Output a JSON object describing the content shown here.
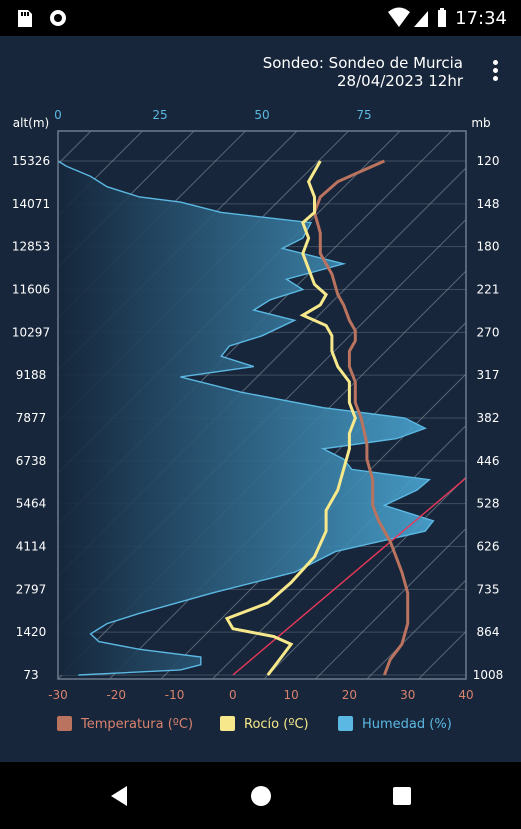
{
  "status_bar": {
    "time": "17:34",
    "left_icons": [
      "sd-card-icon",
      "record-icon"
    ],
    "right_icons": [
      "wifi-icon",
      "cell-signal-icon",
      "battery-icon"
    ]
  },
  "header": {
    "title_line1": "Sondeo: Sondeo de Murcia",
    "title_line2": "28/04/2023 12hr",
    "menu_icon": "more-vert-icon"
  },
  "chart_data": {
    "type": "line",
    "left_axis": {
      "label": "alt(m)",
      "ticks": [
        "15326",
        "14071",
        "12853",
        "11606",
        "10297",
        "9188",
        "7877",
        "6738",
        "5464",
        "4114",
        "2797",
        "1420",
        "73"
      ]
    },
    "right_axis": {
      "label": "mb",
      "ticks": [
        "120",
        "148",
        "180",
        "221",
        "270",
        "317",
        "382",
        "446",
        "528",
        "626",
        "735",
        "864",
        "1008"
      ]
    },
    "top_axis": {
      "ticks": [
        "0",
        "25",
        "50",
        "75"
      ],
      "range": [
        0,
        100
      ]
    },
    "bottom_axis": {
      "ticks": [
        "-30",
        "-20",
        "-10",
        "0",
        "10",
        "20",
        "30",
        "40"
      ],
      "range": [
        -30,
        40
      ]
    },
    "colors": {
      "temperature": "#b9735e",
      "dew_point": "#f7e98b",
      "humidity": "#5bb8e2",
      "axis_text_top": "#5bb8e2",
      "axis_text_bottom": "#d9826e",
      "reference_line": "#e8385a",
      "grid": "#8b97a8"
    },
    "series": [
      {
        "key": "temperature",
        "name": "Temperatura (ºC)",
        "units": "°C",
        "levels": [
          0,
          0.03,
          0.06,
          0.1,
          0.13,
          0.16,
          0.2,
          0.23,
          0.26,
          0.28,
          0.3,
          0.33,
          0.38,
          0.42,
          0.45,
          0.5,
          0.53,
          0.57,
          0.6,
          0.63,
          0.65,
          0.67,
          0.69,
          0.72,
          0.74,
          0.78,
          0.82,
          0.86,
          0.9,
          0.93,
          0.96,
          0.98,
          1
        ],
        "values": [
          26,
          27,
          29,
          30,
          30,
          30,
          29,
          28,
          27,
          26,
          25,
          24,
          24,
          23,
          23,
          22,
          21,
          21,
          20,
          20,
          21,
          21,
          20,
          19,
          18,
          17,
          15,
          15,
          14,
          15,
          18,
          22,
          26
        ]
      },
      {
        "key": "dew_point",
        "name": "Rocío (ºC)",
        "units": "°C",
        "levels": [
          0,
          0.015,
          0.03,
          0.06,
          0.075,
          0.09,
          0.11,
          0.14,
          0.18,
          0.23,
          0.28,
          0.32,
          0.36,
          0.4,
          0.44,
          0.47,
          0.5,
          0.53,
          0.57,
          0.6,
          0.63,
          0.66,
          0.68,
          0.7,
          0.72,
          0.74,
          0.76,
          0.79,
          0.82,
          0.85,
          0.88,
          0.9,
          0.93,
          0.96,
          0.98,
          1
        ],
        "values": [
          6,
          7,
          8,
          10,
          7,
          0,
          -1,
          6,
          10,
          14,
          16,
          16,
          18,
          19,
          20,
          20,
          21,
          20,
          20,
          18,
          17,
          17,
          16,
          12,
          15,
          16,
          14,
          13,
          12,
          13,
          12,
          14,
          14,
          13,
          14,
          15
        ]
      },
      {
        "key": "humidity",
        "name": "Humedad (%)",
        "units": "%",
        "levels": [
          0,
          0.01,
          0.02,
          0.035,
          0.05,
          0.065,
          0.08,
          0.1,
          0.12,
          0.16,
          0.2,
          0.24,
          0.28,
          0.3,
          0.33,
          0.36,
          0.38,
          0.4,
          0.42,
          0.44,
          0.46,
          0.48,
          0.5,
          0.52,
          0.55,
          0.58,
          0.6,
          0.62,
          0.64,
          0.66,
          0.69,
          0.71,
          0.73,
          0.75,
          0.77,
          0.8,
          0.81,
          0.83,
          0.85,
          0.88,
          0.9,
          0.92,
          0.93,
          0.95,
          0.97,
          0.99,
          1
        ],
        "values": [
          5,
          30,
          35,
          35,
          20,
          10,
          8,
          12,
          20,
          38,
          58,
          68,
          90,
          92,
          80,
          88,
          91,
          72,
          70,
          65,
          83,
          90,
          85,
          65,
          45,
          30,
          48,
          40,
          42,
          50,
          58,
          48,
          52,
          60,
          56,
          70,
          65,
          55,
          60,
          62,
          40,
          30,
          20,
          12,
          8,
          2,
          0
        ]
      }
    ],
    "reference_line": {
      "from_temp": 0,
      "to_temp": 48,
      "over_levels": [
        0,
        0.46
      ]
    }
  },
  "legend": {
    "items": [
      {
        "label": "Temperatura (ºC)",
        "color": "#b9735e",
        "text_color": "#d9826e"
      },
      {
        "label": "Rocío (ºC)",
        "color": "#f7e98b",
        "text_color": "#f7e98b"
      },
      {
        "label": "Humedad (%)",
        "color": "#5bb8e2",
        "text_color": "#5bb8e2"
      }
    ]
  },
  "nav_bar": {
    "buttons": [
      "back-icon",
      "home-icon",
      "recents-icon"
    ]
  }
}
